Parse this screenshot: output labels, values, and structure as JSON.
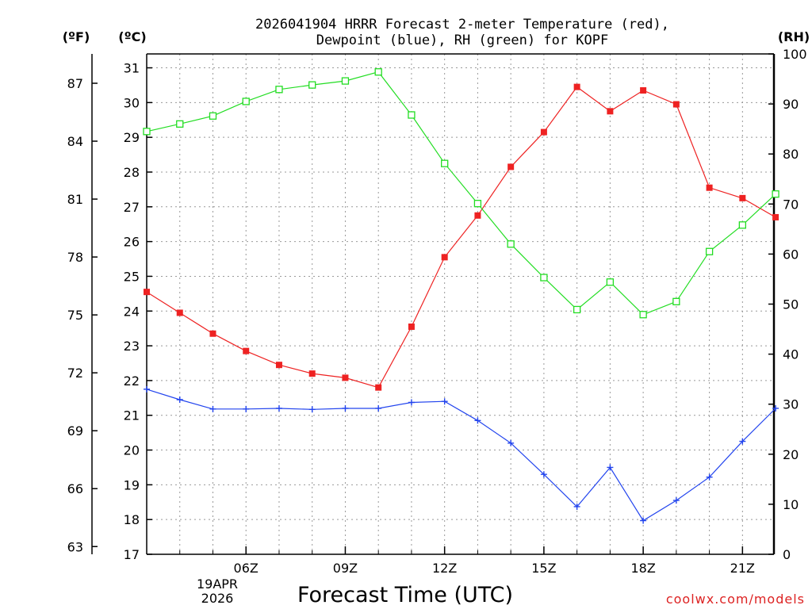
{
  "chart_data": {
    "type": "line",
    "title_line1": "2026041904 HRRR Forecast 2-meter Temperature (red),",
    "title_line2": "Dewpoint (blue), RH (green) for KOPF",
    "xlabel": "Forecast Time (UTC)",
    "left_f_label": "(ºF)",
    "left_c_label": "(ºC)",
    "right_label": "(RH)",
    "date_line1": "19APR",
    "date_line2": "2026",
    "credit": "coolwx.com/models",
    "x_hours": [
      3,
      4,
      5,
      6,
      7,
      8,
      9,
      10,
      11,
      12,
      13,
      14,
      15,
      16,
      17,
      18,
      19,
      20,
      21,
      22
    ],
    "x_ticks": [
      {
        "hour": 6,
        "label": "06Z"
      },
      {
        "hour": 9,
        "label": "09Z"
      },
      {
        "hour": 12,
        "label": "12Z"
      },
      {
        "hour": 15,
        "label": "15Z"
      },
      {
        "hour": 18,
        "label": "18Z"
      },
      {
        "hour": 21,
        "label": "21Z"
      }
    ],
    "x_range": [
      3,
      21.95
    ],
    "celsius_ticks": [
      17,
      18,
      19,
      20,
      21,
      22,
      23,
      24,
      25,
      26,
      27,
      28,
      29,
      30,
      31
    ],
    "celsius_range": [
      17,
      31.4
    ],
    "fahrenheit_ticks": [
      63,
      66,
      69,
      72,
      75,
      78,
      81,
      84,
      87
    ],
    "rh_ticks": [
      0,
      10,
      20,
      30,
      40,
      50,
      60,
      70,
      80,
      90,
      100
    ],
    "rh_range": [
      0,
      100
    ],
    "series": [
      {
        "name": "Temperature",
        "axis": "celsius",
        "color": "#ee2222",
        "marker": "filled-square",
        "values": [
          24.55,
          23.95,
          23.35,
          22.85,
          22.45,
          22.2,
          22.08,
          21.8,
          23.55,
          25.55,
          26.75,
          28.15,
          29.15,
          30.45,
          29.75,
          30.35,
          29.95,
          27.55,
          27.25,
          26.7
        ]
      },
      {
        "name": "Dewpoint",
        "axis": "celsius",
        "color": "#2244ee",
        "marker": "plus",
        "values": [
          21.75,
          21.45,
          21.18,
          21.18,
          21.2,
          21.17,
          21.2,
          21.2,
          21.37,
          21.4,
          20.85,
          20.2,
          19.3,
          18.37,
          19.5,
          17.97,
          18.55,
          19.22,
          20.25,
          21.2
        ]
      },
      {
        "name": "RH",
        "axis": "rh",
        "color": "#22dd22",
        "marker": "open-square",
        "values": [
          84.5,
          86.0,
          87.6,
          90.5,
          92.9,
          93.8,
          94.6,
          96.4,
          87.8,
          78.1,
          70.1,
          62.0,
          55.3,
          48.9,
          54.4,
          47.9,
          50.5,
          60.5,
          65.8,
          72.0
        ]
      }
    ]
  }
}
